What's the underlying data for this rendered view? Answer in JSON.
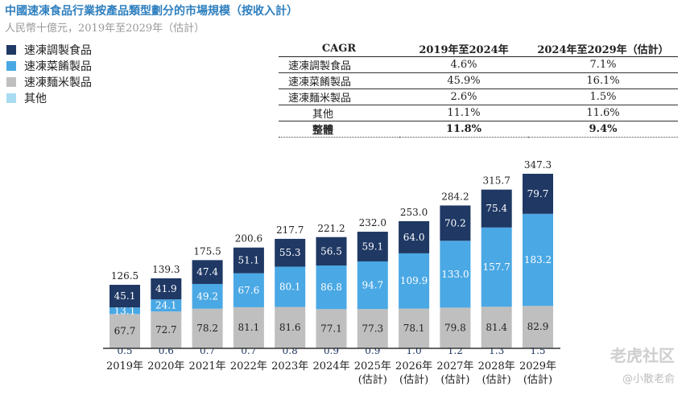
{
  "header": {
    "title": "中國速凍食品行業按產品類型劃分的市場規模（按收入計）",
    "subtitle": "人民幣十億元，2019年至2029年（估計）"
  },
  "legend": [
    {
      "label": "速凍調製食品",
      "color": "#1f3864"
    },
    {
      "label": "速凍菜餚製品",
      "color": "#4aa8e4"
    },
    {
      "label": "速凍麵米製品",
      "color": "#bfbfbf"
    },
    {
      "label": "其他",
      "color": "#a8dcf2"
    }
  ],
  "cagr_table": {
    "headers": [
      "CAGR",
      "2019年至2024年",
      "2024年至2029年（估計）"
    ],
    "rows": [
      {
        "label": "速凍調製食品",
        "v1": "4.6%",
        "v2": "7.1%"
      },
      {
        "label": "速凍菜餚製品",
        "v1": "45.9%",
        "v2": "16.1%"
      },
      {
        "label": "速凍麵米製品",
        "v1": "2.6%",
        "v2": "1.5%"
      },
      {
        "label": "其他",
        "v1": "11.1%",
        "v2": "11.6%"
      },
      {
        "label": "整體",
        "v1": "11.8%",
        "v2": "9.4%"
      }
    ]
  },
  "chart_data": {
    "type": "bar",
    "stacked": true,
    "categories": [
      "2019年",
      "2020年",
      "2021年",
      "2022年",
      "2023年",
      "2024年",
      "2025年\n(估計)",
      "2026年\n(估計)",
      "2027年\n(估計)",
      "2028年\n(估計)",
      "2029年\n(估計)"
    ],
    "series": [
      {
        "name": "其他",
        "color": "#a8dcf2",
        "values": [
          0.5,
          0.6,
          0.7,
          0.7,
          0.8,
          0.9,
          0.9,
          1.0,
          1.2,
          1.3,
          1.5
        ]
      },
      {
        "name": "速凍麵米製品",
        "color": "#bfbfbf",
        "values": [
          67.7,
          72.7,
          78.2,
          81.1,
          81.6,
          77.1,
          77.3,
          78.1,
          79.8,
          81.4,
          82.9
        ]
      },
      {
        "name": "速凍菜餚製品",
        "color": "#4aa8e4",
        "values": [
          13.1,
          24.1,
          49.2,
          67.6,
          80.1,
          86.8,
          94.7,
          109.9,
          133.0,
          157.7,
          183.2
        ]
      },
      {
        "name": "速凍調製食品",
        "color": "#1f3864",
        "values": [
          45.1,
          41.9,
          47.4,
          51.1,
          55.3,
          56.5,
          59.1,
          64.0,
          70.2,
          75.4,
          79.7
        ]
      }
    ],
    "totals": [
      126.5,
      139.3,
      175.5,
      200.6,
      217.7,
      221.2,
      232.0,
      253.0,
      284.2,
      315.7,
      347.3
    ],
    "ylim": [
      0,
      347.3
    ]
  },
  "watermark": {
    "brand": "老虎社区",
    "author": "@小散老俞"
  }
}
